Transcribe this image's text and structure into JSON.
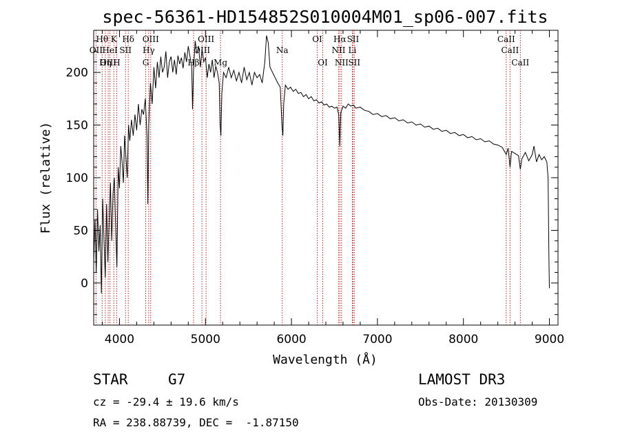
{
  "chart_data": {
    "type": "line",
    "title": "spec-56361-HD154852S010004M01_sp06-007.fits",
    "xlabel": "Wavelength (Å)",
    "ylabel": "Flux (relative)",
    "xlim": [
      3700,
      9100
    ],
    "ylim": [
      -40,
      240
    ],
    "x_ticks": [
      4000,
      5000,
      6000,
      7000,
      8000,
      9000
    ],
    "y_ticks": [
      0,
      50,
      100,
      150,
      200
    ],
    "grid": false,
    "series": [
      {
        "values": [
          [
            3700,
            20
          ],
          [
            3715,
            60
          ],
          [
            3730,
            10
          ],
          [
            3745,
            70
          ],
          [
            3760,
            30
          ],
          [
            3775,
            55
          ],
          [
            3790,
            -10
          ],
          [
            3805,
            80
          ],
          [
            3820,
            40
          ],
          [
            3835,
            5
          ],
          [
            3850,
            75
          ],
          [
            3865,
            20
          ],
          [
            3880,
            60
          ],
          [
            3895,
            95
          ],
          [
            3910,
            40
          ],
          [
            3925,
            85
          ],
          [
            3940,
            100
          ],
          [
            3955,
            55
          ],
          [
            3970,
            15
          ],
          [
            3985,
            110
          ],
          [
            4000,
            90
          ],
          [
            4015,
            130
          ],
          [
            4030,
            115
          ],
          [
            4045,
            95
          ],
          [
            4060,
            140
          ],
          [
            4075,
            120
          ],
          [
            4090,
            100
          ],
          [
            4105,
            150
          ],
          [
            4120,
            135
          ],
          [
            4140,
            155
          ],
          [
            4160,
            140
          ],
          [
            4180,
            160
          ],
          [
            4200,
            145
          ],
          [
            4220,
            170
          ],
          [
            4240,
            150
          ],
          [
            4260,
            165
          ],
          [
            4280,
            160
          ],
          [
            4300,
            175
          ],
          [
            4320,
            140
          ],
          [
            4330,
            75
          ],
          [
            4340,
            150
          ],
          [
            4360,
            190
          ],
          [
            4380,
            170
          ],
          [
            4400,
            205
          ],
          [
            4420,
            185
          ],
          [
            4440,
            210
          ],
          [
            4460,
            195
          ],
          [
            4480,
            215
          ],
          [
            4500,
            200
          ],
          [
            4520,
            205
          ],
          [
            4540,
            220
          ],
          [
            4560,
            195
          ],
          [
            4580,
            210
          ],
          [
            4600,
            215
          ],
          [
            4620,
            200
          ],
          [
            4640,
            212
          ],
          [
            4660,
            198
          ],
          [
            4680,
            216
          ],
          [
            4700,
            208
          ],
          [
            4720,
            214
          ],
          [
            4740,
            204
          ],
          [
            4760,
            219
          ],
          [
            4780,
            210
          ],
          [
            4800,
            225
          ],
          [
            4820,
            215
          ],
          [
            4840,
            205
          ],
          [
            4850,
            165
          ],
          [
            4860,
            200
          ],
          [
            4880,
            230
          ],
          [
            4900,
            218
          ],
          [
            4920,
            225
          ],
          [
            4940,
            205
          ],
          [
            4960,
            222
          ],
          [
            4980,
            210
          ],
          [
            5000,
            214
          ],
          [
            5020,
            195
          ],
          [
            5040,
            208
          ],
          [
            5060,
            200
          ],
          [
            5080,
            212
          ],
          [
            5100,
            195
          ],
          [
            5120,
            206
          ],
          [
            5140,
            200
          ],
          [
            5160,
            190
          ],
          [
            5170,
            150
          ],
          [
            5180,
            140
          ],
          [
            5190,
            180
          ],
          [
            5210,
            200
          ],
          [
            5240,
            195
          ],
          [
            5270,
            205
          ],
          [
            5300,
            195
          ],
          [
            5330,
            202
          ],
          [
            5360,
            192
          ],
          [
            5390,
            200
          ],
          [
            5420,
            190
          ],
          [
            5450,
            205
          ],
          [
            5480,
            193
          ],
          [
            5510,
            200
          ],
          [
            5540,
            188
          ],
          [
            5570,
            200
          ],
          [
            5600,
            195
          ],
          [
            5630,
            198
          ],
          [
            5660,
            190
          ],
          [
            5690,
            210
          ],
          [
            5710,
            235
          ],
          [
            5730,
            228
          ],
          [
            5750,
            205
          ],
          [
            5780,
            200
          ],
          [
            5810,
            195
          ],
          [
            5840,
            190
          ],
          [
            5870,
            186
          ],
          [
            5890,
            150
          ],
          [
            5900,
            140
          ],
          [
            5910,
            170
          ],
          [
            5930,
            188
          ],
          [
            5960,
            184
          ],
          [
            5990,
            186
          ],
          [
            6020,
            182
          ],
          [
            6050,
            184
          ],
          [
            6080,
            180
          ],
          [
            6110,
            181
          ],
          [
            6140,
            177
          ],
          [
            6170,
            179
          ],
          [
            6200,
            175
          ],
          [
            6230,
            177
          ],
          [
            6260,
            173
          ],
          [
            6290,
            174
          ],
          [
            6320,
            171
          ],
          [
            6350,
            172
          ],
          [
            6380,
            169
          ],
          [
            6410,
            170
          ],
          [
            6440,
            167
          ],
          [
            6470,
            168
          ],
          [
            6500,
            166
          ],
          [
            6530,
            167
          ],
          [
            6550,
            160
          ],
          [
            6563,
            130
          ],
          [
            6575,
            162
          ],
          [
            6600,
            168
          ],
          [
            6630,
            166
          ],
          [
            6660,
            170
          ],
          [
            6690,
            168
          ],
          [
            6720,
            169
          ],
          [
            6750,
            166
          ],
          [
            6800,
            167
          ],
          [
            6850,
            164
          ],
          [
            6900,
            163
          ],
          [
            6950,
            160
          ],
          [
            7000,
            161
          ],
          [
            7050,
            158
          ],
          [
            7100,
            159
          ],
          [
            7150,
            156
          ],
          [
            7200,
            157
          ],
          [
            7250,
            154
          ],
          [
            7300,
            155
          ],
          [
            7350,
            152
          ],
          [
            7400,
            153
          ],
          [
            7450,
            150
          ],
          [
            7500,
            151
          ],
          [
            7550,
            148
          ],
          [
            7600,
            149
          ],
          [
            7650,
            146
          ],
          [
            7700,
            147
          ],
          [
            7750,
            144
          ],
          [
            7800,
            145
          ],
          [
            7850,
            142
          ],
          [
            7900,
            143
          ],
          [
            7950,
            140
          ],
          [
            8000,
            141
          ],
          [
            8050,
            138
          ],
          [
            8100,
            139
          ],
          [
            8150,
            136
          ],
          [
            8200,
            137
          ],
          [
            8250,
            134
          ],
          [
            8300,
            135
          ],
          [
            8350,
            132
          ],
          [
            8400,
            131
          ],
          [
            8450,
            129
          ],
          [
            8498,
            122
          ],
          [
            8520,
            128
          ],
          [
            8542,
            110
          ],
          [
            8560,
            125
          ],
          [
            8600,
            123
          ],
          [
            8640,
            121
          ],
          [
            8662,
            108
          ],
          [
            8680,
            118
          ],
          [
            8720,
            124
          ],
          [
            8760,
            116
          ],
          [
            8800,
            122
          ],
          [
            8820,
            130
          ],
          [
            8850,
            115
          ],
          [
            8880,
            122
          ],
          [
            8910,
            117
          ],
          [
            8940,
            120
          ],
          [
            8970,
            115
          ],
          [
            8985,
            100
          ],
          [
            8995,
            20
          ],
          [
            9000,
            -5
          ]
        ]
      }
    ],
    "lines": [
      {
        "label": "Hθ",
        "x": 3798,
        "row": 1
      },
      {
        "label": "K",
        "x": 3934,
        "row": 1
      },
      {
        "label": "Hδ",
        "x": 4102,
        "row": 1
      },
      {
        "label": "OIII",
        "x": 4363,
        "row": 1
      },
      {
        "label": "OIII",
        "x": 5007,
        "row": 1
      },
      {
        "label": "OII",
        "x": 3727,
        "row": 2
      },
      {
        "label": "HeI",
        "x": 3889,
        "row": 2
      },
      {
        "label": "SII",
        "x": 4070,
        "row": 2
      },
      {
        "label": "Hγ",
        "x": 4340,
        "row": 2
      },
      {
        "label": "OIII",
        "x": 4959,
        "row": 2
      },
      {
        "label": "OIII",
        "x": 3869,
        "row": 3
      },
      {
        "label": "Hη",
        "x": 3835,
        "row": 3
      },
      {
        "label": "H",
        "x": 3968,
        "row": 3
      },
      {
        "label": "G",
        "x": 4305,
        "row": 3
      },
      {
        "label": "Hβ",
        "x": 4861,
        "row": 3
      },
      {
        "label": "Mg",
        "x": 5175,
        "row": 3
      },
      {
        "label": "Na",
        "x": 5893,
        "row": 2
      },
      {
        "label": "OI",
        "x": 6300,
        "row": 1
      },
      {
        "label": "OI",
        "x": 6364,
        "row": 3
      },
      {
        "label": "Hα",
        "x": 6563,
        "row": 1
      },
      {
        "label": "SII",
        "x": 6716,
        "row": 1
      },
      {
        "label": "NII",
        "x": 6548,
        "row": 2
      },
      {
        "label": "Li",
        "x": 6708,
        "row": 2
      },
      {
        "label": "NII",
        "x": 6583,
        "row": 3
      },
      {
        "label": "SII",
        "x": 6731,
        "row": 3
      },
      {
        "label": "CaII",
        "x": 8498,
        "row": 1
      },
      {
        "label": "CaII",
        "x": 8542,
        "row": 2
      },
      {
        "label": "CaII",
        "x": 8662,
        "row": 3
      }
    ]
  },
  "info": {
    "object_class": "STAR",
    "subclass": "G7",
    "survey": "LAMOST DR3",
    "redshift": "cz = -29.4 ± 19.6 km/s",
    "obs_date": "Obs-Date: 20130309",
    "coords": "RA = 238.88739, DEC =  -1.87150"
  }
}
